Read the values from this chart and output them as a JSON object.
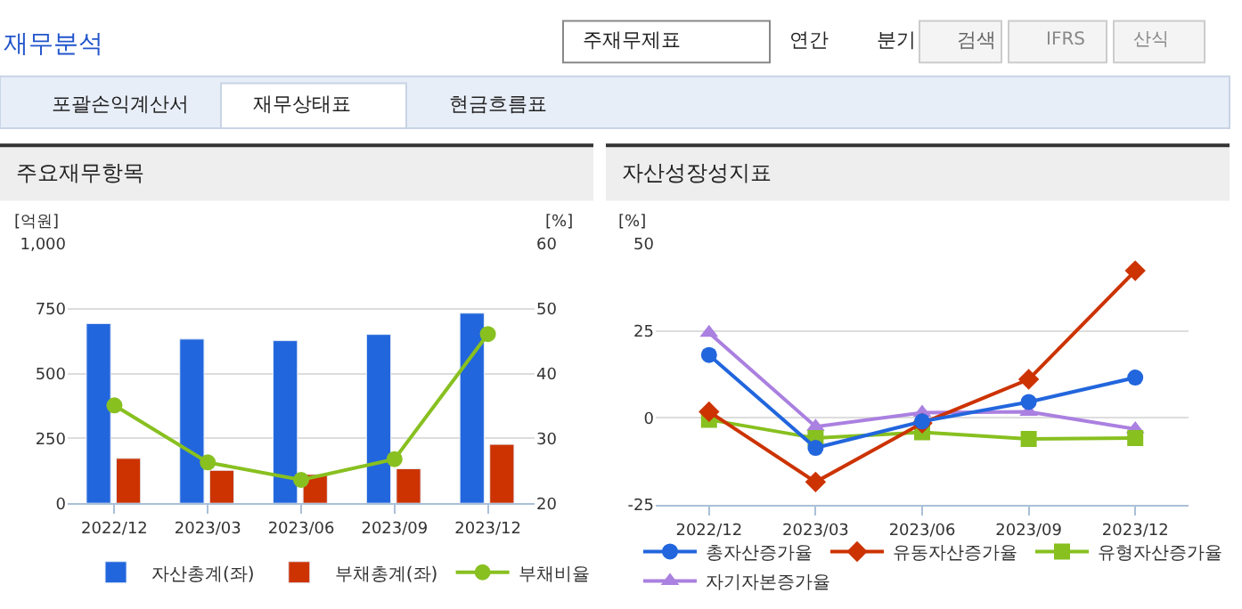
{
  "chart_data": [
    {
      "type": "bar",
      "title": "주요재무항목",
      "ylabel": "[억원]",
      "y2label": "[%]",
      "annotations": [
        "재무분석",
        "주재무제표",
        "연간",
        "분기",
        "검색",
        "IFRS",
        "산식",
        "포괄손익계산서",
        "재무상태표",
        "현금흐름표"
      ],
      "categories": [
        "2022/12",
        "2023/03",
        "2023/06",
        "2023/09",
        "2023/12"
      ],
      "series": [
        {
          "name": "자산총계(좌)",
          "color": "#2266dd",
          "values": [
            693,
            633,
            627,
            651,
            733
          ]
        },
        {
          "name": "부채총계(좌)",
          "color": "#cc3300",
          "values": [
            173,
            127,
            111,
            133,
            227
          ]
        },
        {
          "name": "부채비율",
          "type": "line",
          "axis": "y2",
          "marker": "circle",
          "color": "#88c020",
          "values": [
            35.1,
            26.3,
            23.6,
            26.8,
            46.1
          ]
        }
      ],
      "ylim": [
        0,
        1000
      ],
      "yticks": [
        0,
        250,
        500,
        750,
        {
          "value": 1000,
          "label": "1,000"
        }
      ],
      "y2lim": [
        20,
        60
      ],
      "y2ticks": [
        20,
        30,
        40,
        50,
        60
      ],
      "grid": "y",
      "legend": "bottom"
    },
    {
      "type": "line",
      "title": "자산성장성지표",
      "ylabel": "[%]",
      "categories": [
        "2022/12",
        "2023/03",
        "2023/06",
        "2023/09",
        "2023/12"
      ],
      "series": [
        {
          "name": "총자산증가율",
          "color": "#2266dd",
          "marker": "circle",
          "values": [
            18.1,
            -8.6,
            -1.0,
            4.6,
            11.6
          ]
        },
        {
          "name": "유동자산증가율",
          "color": "#cc3300",
          "marker": "diamond",
          "values": [
            1.8,
            -18.4,
            -1.5,
            11.1,
            42.3
          ]
        },
        {
          "name": "유형자산증가율",
          "color": "#88c020",
          "marker": "square",
          "values": [
            -0.5,
            -5.8,
            -4.1,
            -6.0,
            -5.8
          ]
        },
        {
          "name": "자기자본증가율",
          "color": "#aa80e0",
          "marker": "triangle",
          "values": [
            24.5,
            -2.5,
            1.5,
            1.8,
            -3.2
          ]
        }
      ],
      "ylim": [
        -25,
        50
      ],
      "yticks": [
        -25,
        0,
        25,
        50
      ],
      "grid": "y",
      "legend": "bottom"
    }
  ]
}
